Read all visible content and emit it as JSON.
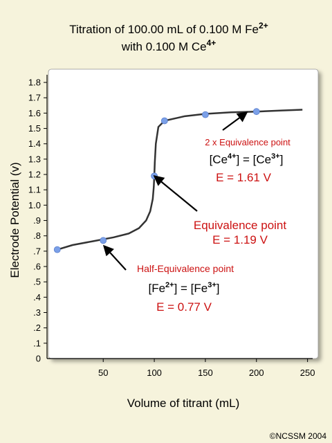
{
  "title": {
    "line1_prefix": "Titration of 100.00 mL of 0.100 M  Fe",
    "line1_sup": "2+",
    "line2_prefix": "with 0.100 M  Ce",
    "line2_sup": "4+"
  },
  "chart_data": {
    "type": "line",
    "xlabel": "Volume of titrant (mL)",
    "ylabel": "Electrode Potential (v)",
    "xlim": [
      -5,
      255
    ],
    "ylim": [
      0,
      1.85
    ],
    "x_ticks": [
      50,
      100,
      150,
      200,
      250
    ],
    "x_tick_labels": [
      "50",
      "100",
      "150",
      "200",
      "250"
    ],
    "y_ticks": [
      0,
      0.1,
      0.2,
      0.3,
      0.4,
      0.5,
      0.6,
      0.7,
      0.8,
      0.9,
      1.0,
      1.1,
      1.2,
      1.3,
      1.4,
      1.5,
      1.6,
      1.7,
      1.8
    ],
    "y_tick_labels": [
      "0",
      ".1",
      ".2",
      ".3",
      ".4",
      ".5",
      ".6",
      ".7",
      ".8",
      ".9",
      "1.0",
      "1.1",
      "1.2",
      "1.3",
      "1.4",
      "1.5",
      "1.6",
      "1.7",
      "1.8"
    ],
    "curve": {
      "x": [
        5,
        20,
        40,
        60,
        75,
        85,
        92,
        96,
        98.5,
        99.5,
        100,
        100.5,
        101.5,
        104,
        110,
        130,
        150,
        175,
        200,
        225,
        245
      ],
      "y": [
        0.71,
        0.74,
        0.765,
        0.79,
        0.815,
        0.85,
        0.9,
        0.96,
        1.04,
        1.12,
        1.19,
        1.28,
        1.4,
        1.51,
        1.55,
        1.58,
        1.595,
        1.605,
        1.61,
        1.617,
        1.622
      ]
    },
    "points": [
      {
        "x": 5,
        "y": 0.71
      },
      {
        "x": 50,
        "y": 0.77
      },
      {
        "x": 100,
        "y": 1.19
      },
      {
        "x": 110,
        "y": 1.55
      },
      {
        "x": 150,
        "y": 1.59
      },
      {
        "x": 200,
        "y": 1.61
      }
    ],
    "colors": {
      "curve": "#333333",
      "points": "#7ba0e8",
      "annotation": "#cc1111",
      "plot_bg": "#ffffff",
      "page_bg": "#f6f3dc"
    }
  },
  "annotations": {
    "two_x": {
      "label": "2 x Equivalence point",
      "eq_left_base": "[Ce",
      "eq_left_sup": "4+",
      "eq_mid": "] = [Ce",
      "eq_right_sup": "3+",
      "eq_end": "]",
      "energy": "E = 1.61 V"
    },
    "equivalence": {
      "label": "Equivalence point",
      "energy": "E = 1.19 V"
    },
    "half": {
      "label": "Half-Equivalence point",
      "eq_left_base": "[Fe",
      "eq_left_sup": "2+",
      "eq_mid": "] = [Fe",
      "eq_right_sup": "3+",
      "eq_end": "]",
      "energy": "E = 0.77 V"
    }
  },
  "credit": "©NCSSM 2004"
}
